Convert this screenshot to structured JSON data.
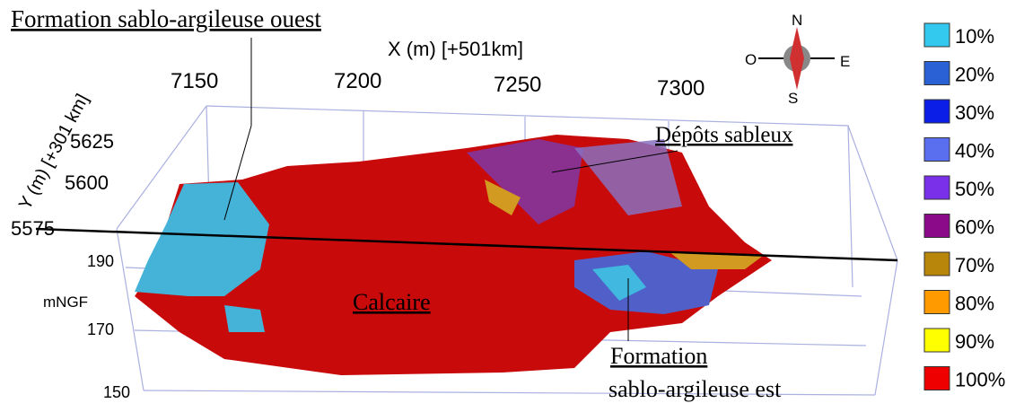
{
  "annotations": {
    "west": "Formation sablo-argileuse ouest",
    "sands": "Dépôts sableux",
    "limestone": "Calcaire",
    "east_1": "Formation",
    "east_2": "sablo-argileuse est"
  },
  "axes": {
    "x": {
      "label": "X (m) [+501km]",
      "ticks": [
        "7150",
        "7200",
        "7250",
        "7300"
      ]
    },
    "y": {
      "label": "Y (m) [+301 km]",
      "ticks": [
        "5625",
        "5600",
        "5575"
      ]
    },
    "z": {
      "label": "mNGF",
      "ticks": [
        "190",
        "170",
        "150"
      ]
    }
  },
  "compass": {
    "n": "N",
    "s": "S",
    "e": "E",
    "w": "O"
  },
  "legend": [
    {
      "label": "10%",
      "color": "#33c8ee"
    },
    {
      "label": "20%",
      "color": "#2a62d6"
    },
    {
      "label": "30%",
      "color": "#0a1ee8"
    },
    {
      "label": "40%",
      "color": "#5a6ef0"
    },
    {
      "label": "50%",
      "color": "#7a30e8"
    },
    {
      "label": "60%",
      "color": "#8a0a8a"
    },
    {
      "label": "70%",
      "color": "#b8860b"
    },
    {
      "label": "80%",
      "color": "#ff9a00"
    },
    {
      "label": "90%",
      "color": "#ffff00"
    },
    {
      "label": "100%",
      "color": "#ee0000"
    }
  ]
}
